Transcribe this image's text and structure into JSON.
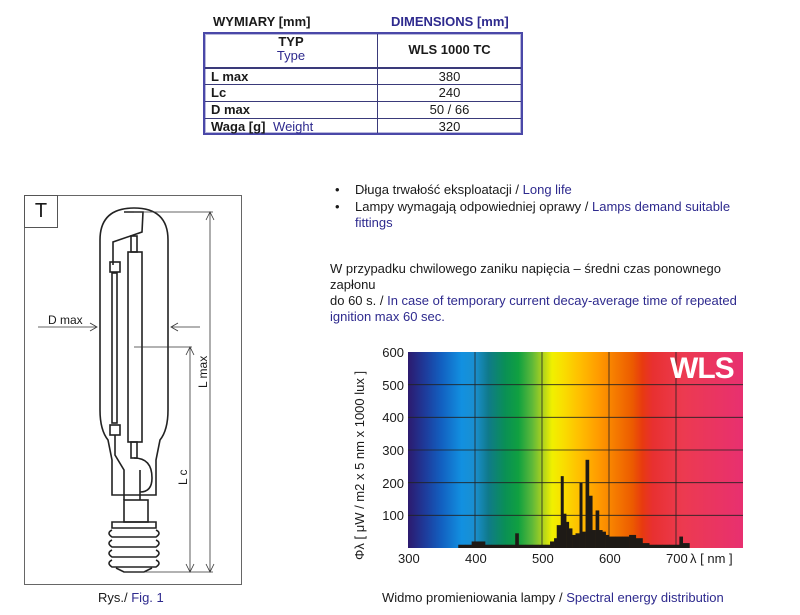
{
  "table": {
    "header_pl": "WYMIARY [mm]",
    "header_en": "DIMENSIONS [mm]",
    "type_label_pl": "TYP",
    "type_label_en": "Type",
    "type_value": "WLS 1000 TC",
    "rows": [
      {
        "label_pl": "L max",
        "label_en": "",
        "value": "380"
      },
      {
        "label_pl": "Lc",
        "label_en": "",
        "value": "240"
      },
      {
        "label_pl": "D max",
        "label_en": "",
        "value": "50 / 66"
      },
      {
        "label_pl": "Waga [g]",
        "label_en": "Weight",
        "value": "320"
      }
    ]
  },
  "bullets": [
    {
      "pl": "Długa trwałość eksploatacji / ",
      "en": "Long life"
    },
    {
      "pl": "Lampy wymagają odpowiedniej oprawy / ",
      "en": "Lamps demand suitable",
      "en2": "fittings"
    }
  ],
  "paragraph": {
    "pl1": "W przypadku chwilowego zaniku napięcia – średni czas ponownego",
    "pl2": "zapłonu",
    "pl3": "do 60 s. / ",
    "en1": "In case of temporary current decay-average time of repeated",
    "en2": "ignition max 60 sec."
  },
  "figure": {
    "type_badge": "T",
    "d_max_label": "D max",
    "l_max_label": "L max",
    "lc_label": "L c",
    "caption_pl": "Rys./ ",
    "caption_en": "Fig. 1"
  },
  "chart_caption": {
    "pl": "Widmo promieniowania lampy / ",
    "en": "Spectral energy distribution"
  },
  "chart_data": {
    "type": "bar",
    "title": "WLS",
    "xlabel": "λ [ nm ]",
    "ylabel": "Φλ [ μW / m2 x 5 nm x 1000 lux ]",
    "xlim": [
      300,
      800
    ],
    "ylim": [
      0,
      600
    ],
    "x_ticks": [
      "300",
      "400",
      "500",
      "600",
      "700"
    ],
    "y_ticks": [
      "100",
      "200",
      "300",
      "400",
      "500",
      "600"
    ],
    "grid": true,
    "legend": null,
    "x": [
      375,
      385,
      395,
      405,
      415,
      425,
      435,
      445,
      455,
      460,
      465,
      475,
      485,
      495,
      505,
      512,
      518,
      522,
      528,
      532,
      536,
      540,
      545,
      550,
      556,
      560,
      565,
      570,
      575,
      580,
      585,
      590,
      595,
      600,
      610,
      620,
      630,
      640,
      650,
      660,
      670,
      680,
      690,
      700,
      705,
      710,
      715
    ],
    "values": [
      10,
      10,
      20,
      20,
      10,
      10,
      10,
      10,
      10,
      45,
      10,
      10,
      10,
      10,
      10,
      20,
      30,
      70,
      220,
      105,
      80,
      60,
      40,
      45,
      200,
      50,
      270,
      160,
      55,
      115,
      55,
      50,
      40,
      35,
      35,
      35,
      40,
      30,
      15,
      10,
      10,
      10,
      10,
      10,
      35,
      15,
      15
    ]
  }
}
